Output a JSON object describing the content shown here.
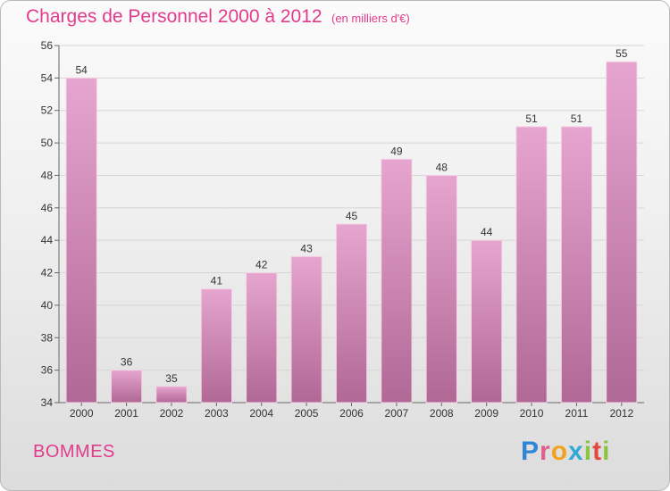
{
  "header": {
    "title": "Charges de Personnel 2000 à 2012",
    "subtitle": "(en milliers d'€)"
  },
  "footer": {
    "city": "BOMMES",
    "brand": [
      "P",
      "r",
      "o",
      "x",
      "i",
      "t",
      "i"
    ]
  },
  "colors": {
    "title": "#e23b8c",
    "bar_top": "#e6a5cf",
    "bar_bottom": "#b06895"
  },
  "chart_data": {
    "type": "bar",
    "title": "Charges de Personnel 2000 à 2012",
    "subtitle": "(en milliers d'€)",
    "xlabel": "",
    "ylabel": "",
    "categories": [
      "2000",
      "2001",
      "2002",
      "2003",
      "2004",
      "2005",
      "2006",
      "2007",
      "2008",
      "2009",
      "2010",
      "2011",
      "2012"
    ],
    "values": [
      54,
      36,
      35,
      41,
      42,
      43,
      45,
      49,
      48,
      44,
      51,
      51,
      55
    ],
    "ylim": [
      34,
      56
    ],
    "yticks": [
      34,
      36,
      38,
      40,
      42,
      44,
      46,
      48,
      50,
      52,
      54,
      56
    ],
    "grid": true,
    "legend": "none"
  }
}
